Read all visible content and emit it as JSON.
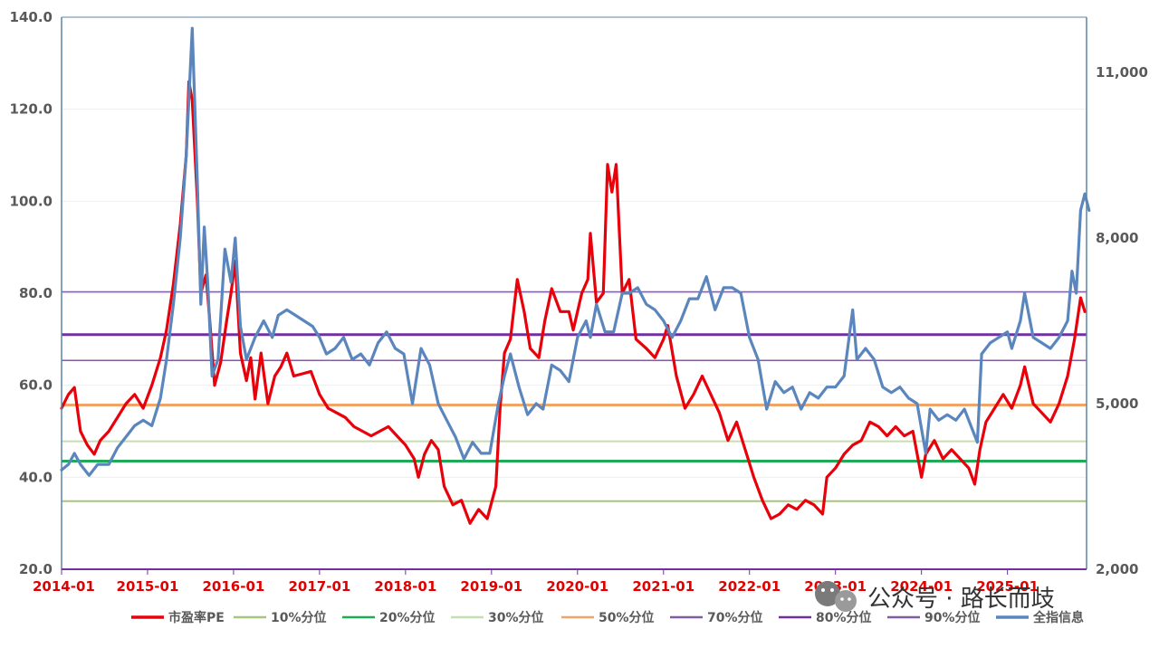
{
  "chart_data": {
    "type": "line",
    "x_ticks": [
      "2014-01",
      "2015-01",
      "2016-01",
      "2017-01",
      "2018-01",
      "2019-01",
      "2020-01",
      "2021-01",
      "2022-01",
      "2023-01",
      "2024-01",
      "2025-01"
    ],
    "y_left": {
      "ticks": [
        "20.0",
        "40.0",
        "60.0",
        "80.0",
        "100.0",
        "120.0",
        "140.0"
      ],
      "range": [
        20,
        140
      ]
    },
    "y_right": {
      "ticks": [
        "2,000",
        "5,000",
        "8,000",
        "11,000"
      ],
      "range": [
        2000,
        12000
      ]
    },
    "reference_lines": [
      {
        "name": "10%分位",
        "value": 34.8,
        "color": "#a9c47f",
        "width": 2
      },
      {
        "name": "20%分位",
        "value": 43.5,
        "color": "#1faa55",
        "width": 3
      },
      {
        "name": "30%分位",
        "value": 47.8,
        "color": "#c6deb0",
        "width": 2
      },
      {
        "name": "50%分位",
        "value": 55.7,
        "color": "#f0a467",
        "width": 3
      },
      {
        "name": "70%分位",
        "value": 65.4,
        "color": "#7f5f9e",
        "width": 1.5
      },
      {
        "name": "80%分位",
        "value": 71.0,
        "color": "#7030a0",
        "width": 3
      },
      {
        "name": "90%分位",
        "value": 80.3,
        "color": "#7f5f9e",
        "width": 1.5
      }
    ],
    "series": [
      {
        "name": "市盈率PE",
        "axis": "left",
        "color": "#e8000b",
        "points": [
          [
            2014.0,
            55
          ],
          [
            2014.08,
            58
          ],
          [
            2014.15,
            59.5
          ],
          [
            2014.22,
            50
          ],
          [
            2014.3,
            47
          ],
          [
            2014.38,
            45
          ],
          [
            2014.45,
            48
          ],
          [
            2014.55,
            50
          ],
          [
            2014.65,
            53
          ],
          [
            2014.75,
            56
          ],
          [
            2014.85,
            58
          ],
          [
            2014.95,
            55
          ],
          [
            2015.05,
            60
          ],
          [
            2015.15,
            66
          ],
          [
            2015.22,
            72
          ],
          [
            2015.3,
            82
          ],
          [
            2015.38,
            95
          ],
          [
            2015.45,
            110
          ],
          [
            2015.48,
            126
          ],
          [
            2015.52,
            122
          ],
          [
            2015.58,
            100
          ],
          [
            2015.62,
            80
          ],
          [
            2015.68,
            84
          ],
          [
            2015.72,
            75
          ],
          [
            2015.78,
            60
          ],
          [
            2015.85,
            65
          ],
          [
            2015.92,
            74
          ],
          [
            2015.97,
            80
          ],
          [
            2016.02,
            87
          ],
          [
            2016.08,
            67
          ],
          [
            2016.15,
            61
          ],
          [
            2016.2,
            66
          ],
          [
            2016.25,
            57
          ],
          [
            2016.32,
            67
          ],
          [
            2016.4,
            56
          ],
          [
            2016.48,
            62
          ],
          [
            2016.55,
            64
          ],
          [
            2016.62,
            67
          ],
          [
            2016.7,
            62
          ],
          [
            2016.8,
            62.5
          ],
          [
            2016.9,
            63
          ],
          [
            2017.0,
            58
          ],
          [
            2017.1,
            55
          ],
          [
            2017.2,
            54
          ],
          [
            2017.3,
            53
          ],
          [
            2017.4,
            51
          ],
          [
            2017.5,
            50
          ],
          [
            2017.6,
            49
          ],
          [
            2017.7,
            50
          ],
          [
            2017.8,
            51
          ],
          [
            2017.9,
            49
          ],
          [
            2018.0,
            47
          ],
          [
            2018.1,
            44
          ],
          [
            2018.15,
            40
          ],
          [
            2018.22,
            45
          ],
          [
            2018.3,
            48
          ],
          [
            2018.38,
            46
          ],
          [
            2018.45,
            38
          ],
          [
            2018.55,
            34
          ],
          [
            2018.65,
            35
          ],
          [
            2018.75,
            30
          ],
          [
            2018.85,
            33
          ],
          [
            2018.95,
            31
          ],
          [
            2019.05,
            38
          ],
          [
            2019.1,
            55
          ],
          [
            2019.15,
            67
          ],
          [
            2019.22,
            70
          ],
          [
            2019.3,
            83
          ],
          [
            2019.38,
            76
          ],
          [
            2019.45,
            68
          ],
          [
            2019.55,
            66
          ],
          [
            2019.62,
            74
          ],
          [
            2019.7,
            81
          ],
          [
            2019.8,
            76
          ],
          [
            2019.9,
            76
          ],
          [
            2019.95,
            72
          ],
          [
            2020.05,
            80
          ],
          [
            2020.12,
            83
          ],
          [
            2020.15,
            93
          ],
          [
            2020.22,
            78
          ],
          [
            2020.3,
            80
          ],
          [
            2020.35,
            108
          ],
          [
            2020.4,
            102
          ],
          [
            2020.45,
            108
          ],
          [
            2020.52,
            80
          ],
          [
            2020.6,
            83
          ],
          [
            2020.68,
            70
          ],
          [
            2020.8,
            68
          ],
          [
            2020.9,
            66
          ],
          [
            2021.0,
            70
          ],
          [
            2021.05,
            73
          ],
          [
            2021.15,
            62
          ],
          [
            2021.25,
            55
          ],
          [
            2021.35,
            58
          ],
          [
            2021.45,
            62
          ],
          [
            2021.55,
            58
          ],
          [
            2021.65,
            54
          ],
          [
            2021.75,
            48
          ],
          [
            2021.85,
            52
          ],
          [
            2021.95,
            46
          ],
          [
            2022.05,
            40
          ],
          [
            2022.15,
            35
          ],
          [
            2022.25,
            31
          ],
          [
            2022.35,
            32
          ],
          [
            2022.45,
            34
          ],
          [
            2022.55,
            33
          ],
          [
            2022.65,
            35
          ],
          [
            2022.75,
            34
          ],
          [
            2022.85,
            32
          ],
          [
            2022.9,
            40
          ],
          [
            2023.0,
            42
          ],
          [
            2023.1,
            45
          ],
          [
            2023.2,
            47
          ],
          [
            2023.3,
            48
          ],
          [
            2023.4,
            52
          ],
          [
            2023.5,
            51
          ],
          [
            2023.6,
            49
          ],
          [
            2023.7,
            51
          ],
          [
            2023.8,
            49
          ],
          [
            2023.9,
            50
          ],
          [
            2024.0,
            40
          ],
          [
            2024.05,
            45
          ],
          [
            2024.15,
            48
          ],
          [
            2024.25,
            44
          ],
          [
            2024.35,
            46
          ],
          [
            2024.45,
            44
          ],
          [
            2024.55,
            42
          ],
          [
            2024.62,
            38.5
          ],
          [
            2024.68,
            46
          ],
          [
            2024.75,
            52
          ],
          [
            2024.85,
            55
          ],
          [
            2024.95,
            58
          ],
          [
            2025.05,
            55
          ],
          [
            2025.15,
            60
          ],
          [
            2025.2,
            64
          ],
          [
            2025.3,
            56
          ],
          [
            2025.4,
            54
          ],
          [
            2025.5,
            52
          ],
          [
            2025.6,
            56
          ],
          [
            2025.7,
            62
          ],
          [
            2025.78,
            70
          ],
          [
            2025.85,
            79
          ],
          [
            2025.9,
            76
          ]
        ]
      },
      {
        "name": "全指信息",
        "axis": "right",
        "color": "#5b86bd",
        "points": [
          [
            2014.0,
            3800
          ],
          [
            2014.08,
            3900
          ],
          [
            2014.15,
            4100
          ],
          [
            2014.22,
            3900
          ],
          [
            2014.32,
            3700
          ],
          [
            2014.42,
            3900
          ],
          [
            2014.55,
            3900
          ],
          [
            2014.65,
            4200
          ],
          [
            2014.75,
            4400
          ],
          [
            2014.85,
            4600
          ],
          [
            2014.95,
            4700
          ],
          [
            2015.05,
            4600
          ],
          [
            2015.15,
            5100
          ],
          [
            2015.22,
            5800
          ],
          [
            2015.3,
            6800
          ],
          [
            2015.38,
            8000
          ],
          [
            2015.45,
            9500
          ],
          [
            2015.52,
            11800
          ],
          [
            2015.58,
            9000
          ],
          [
            2015.62,
            6800
          ],
          [
            2015.66,
            8200
          ],
          [
            2015.7,
            7200
          ],
          [
            2015.75,
            5500
          ],
          [
            2015.82,
            5800
          ],
          [
            2015.9,
            7800
          ],
          [
            2015.97,
            7200
          ],
          [
            2016.02,
            8000
          ],
          [
            2016.08,
            6400
          ],
          [
            2016.15,
            5800
          ],
          [
            2016.25,
            6200
          ],
          [
            2016.35,
            6500
          ],
          [
            2016.45,
            6200
          ],
          [
            2016.52,
            6600
          ],
          [
            2016.62,
            6700
          ],
          [
            2016.72,
            6600
          ],
          [
            2016.82,
            6500
          ],
          [
            2016.92,
            6400
          ],
          [
            2017.0,
            6200
          ],
          [
            2017.08,
            5900
          ],
          [
            2017.18,
            6000
          ],
          [
            2017.28,
            6200
          ],
          [
            2017.38,
            5800
          ],
          [
            2017.48,
            5900
          ],
          [
            2017.58,
            5700
          ],
          [
            2017.68,
            6100
          ],
          [
            2017.78,
            6300
          ],
          [
            2017.88,
            6000
          ],
          [
            2017.98,
            5900
          ],
          [
            2018.08,
            5000
          ],
          [
            2018.18,
            6000
          ],
          [
            2018.28,
            5700
          ],
          [
            2018.38,
            5000
          ],
          [
            2018.48,
            4700
          ],
          [
            2018.58,
            4400
          ],
          [
            2018.68,
            4000
          ],
          [
            2018.78,
            4300
          ],
          [
            2018.88,
            4100
          ],
          [
            2018.98,
            4100
          ],
          [
            2019.08,
            5000
          ],
          [
            2019.15,
            5500
          ],
          [
            2019.22,
            5900
          ],
          [
            2019.32,
            5300
          ],
          [
            2019.42,
            4800
          ],
          [
            2019.52,
            5000
          ],
          [
            2019.6,
            4900
          ],
          [
            2019.7,
            5700
          ],
          [
            2019.8,
            5600
          ],
          [
            2019.9,
            5400
          ],
          [
            2020.0,
            6200
          ],
          [
            2020.1,
            6500
          ],
          [
            2020.15,
            6200
          ],
          [
            2020.22,
            6800
          ],
          [
            2020.32,
            6300
          ],
          [
            2020.42,
            6300
          ],
          [
            2020.52,
            7000
          ],
          [
            2020.6,
            7000
          ],
          [
            2020.7,
            7100
          ],
          [
            2020.8,
            6800
          ],
          [
            2020.9,
            6700
          ],
          [
            2021.0,
            6500
          ],
          [
            2021.1,
            6200
          ],
          [
            2021.2,
            6500
          ],
          [
            2021.3,
            6900
          ],
          [
            2021.4,
            6900
          ],
          [
            2021.5,
            7300
          ],
          [
            2021.6,
            6700
          ],
          [
            2021.7,
            7100
          ],
          [
            2021.8,
            7100
          ],
          [
            2021.9,
            7000
          ],
          [
            2022.0,
            6200
          ],
          [
            2022.1,
            5800
          ],
          [
            2022.2,
            4900
          ],
          [
            2022.3,
            5400
          ],
          [
            2022.4,
            5200
          ],
          [
            2022.5,
            5300
          ],
          [
            2022.6,
            4900
          ],
          [
            2022.7,
            5200
          ],
          [
            2022.8,
            5100
          ],
          [
            2022.9,
            5300
          ],
          [
            2023.0,
            5300
          ],
          [
            2023.1,
            5500
          ],
          [
            2023.2,
            6700
          ],
          [
            2023.25,
            5800
          ],
          [
            2023.35,
            6000
          ],
          [
            2023.45,
            5800
          ],
          [
            2023.55,
            5300
          ],
          [
            2023.65,
            5200
          ],
          [
            2023.75,
            5300
          ],
          [
            2023.85,
            5100
          ],
          [
            2023.95,
            5000
          ],
          [
            2024.05,
            4100
          ],
          [
            2024.1,
            4900
          ],
          [
            2024.2,
            4700
          ],
          [
            2024.3,
            4800
          ],
          [
            2024.4,
            4700
          ],
          [
            2024.5,
            4900
          ],
          [
            2024.6,
            4500
          ],
          [
            2024.65,
            4300
          ],
          [
            2024.7,
            5900
          ],
          [
            2024.8,
            6100
          ],
          [
            2024.9,
            6200
          ],
          [
            2025.0,
            6300
          ],
          [
            2025.05,
            6000
          ],
          [
            2025.15,
            6500
          ],
          [
            2025.2,
            7000
          ],
          [
            2025.3,
            6200
          ],
          [
            2025.4,
            6100
          ],
          [
            2025.5,
            6000
          ],
          [
            2025.6,
            6200
          ],
          [
            2025.7,
            6500
          ],
          [
            2025.75,
            7400
          ],
          [
            2025.8,
            7000
          ],
          [
            2025.85,
            8500
          ],
          [
            2025.9,
            8800
          ],
          [
            2025.95,
            8500
          ]
        ]
      }
    ],
    "legend": {
      "position": "bottom",
      "items": [
        {
          "name": "市盈率PE",
          "color": "#e8000b"
        },
        {
          "name": "10%分位",
          "color": "#a9c47f"
        },
        {
          "name": "20%分位",
          "color": "#1faa55"
        },
        {
          "name": "30%分位",
          "color": "#c6deb0"
        },
        {
          "name": "50%分位",
          "color": "#f0a467"
        },
        {
          "name": "70%分位",
          "color": "#7f5f9e"
        },
        {
          "name": "80%分位",
          "color": "#7030a0"
        },
        {
          "name": "90%分位",
          "color": "#7f5f9e"
        },
        {
          "name": "全指信息",
          "color": "#5b86bd"
        }
      ]
    }
  },
  "watermark": {
    "text": "公众号 · 路长而歧",
    "icon": "wechat-icon"
  }
}
